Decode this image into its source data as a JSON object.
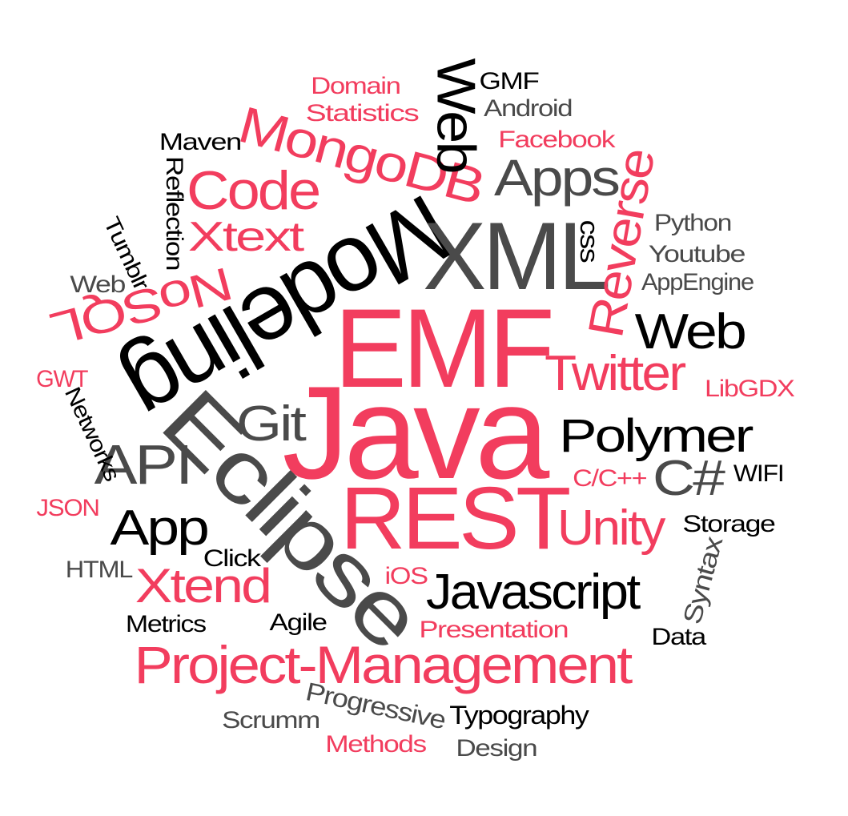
{
  "palette": {
    "pink": "#f23d5e",
    "black": "#000000",
    "gray": "#4a4a4a"
  },
  "words": [
    {
      "id": "java",
      "text": "Java",
      "color": "pink"
    },
    {
      "id": "emf",
      "text": "EMF",
      "color": "pink"
    },
    {
      "id": "rest",
      "text": "REST",
      "color": "pink"
    },
    {
      "id": "modeling",
      "text": "Modeling",
      "color": "black"
    },
    {
      "id": "xml",
      "text": "XML",
      "color": "gray"
    },
    {
      "id": "eclipse",
      "text": "Eclipse",
      "color": "gray"
    },
    {
      "id": "project-management",
      "text": "Project-Management",
      "color": "pink"
    },
    {
      "id": "mongodb",
      "text": "MongoDB",
      "color": "pink"
    },
    {
      "id": "code",
      "text": "Code",
      "color": "pink"
    },
    {
      "id": "xtext",
      "text": "Xtext",
      "color": "pink"
    },
    {
      "id": "nosql",
      "text": "NoSQL",
      "color": "pink"
    },
    {
      "id": "web-large",
      "text": "Web",
      "color": "black"
    },
    {
      "id": "apps",
      "text": "Apps",
      "color": "gray"
    },
    {
      "id": "reverse",
      "text": "Reverse",
      "color": "pink"
    },
    {
      "id": "web-right",
      "text": "Web",
      "color": "black"
    },
    {
      "id": "twitter",
      "text": "Twitter",
      "color": "pink"
    },
    {
      "id": "polymer",
      "text": "Polymer",
      "color": "black"
    },
    {
      "id": "git",
      "text": "Git",
      "color": "gray"
    },
    {
      "id": "api",
      "text": "API",
      "color": "gray"
    },
    {
      "id": "app",
      "text": "App",
      "color": "black"
    },
    {
      "id": "csharp",
      "text": "C#",
      "color": "gray"
    },
    {
      "id": "unity",
      "text": "Unity",
      "color": "pink"
    },
    {
      "id": "javascript",
      "text": "Javascript",
      "color": "black"
    },
    {
      "id": "xtend",
      "text": "Xtend",
      "color": "pink"
    },
    {
      "id": "domain",
      "text": "Domain",
      "color": "pink"
    },
    {
      "id": "statistics",
      "text": "Statistics",
      "color": "pink"
    },
    {
      "id": "gmf",
      "text": "GMF",
      "color": "black"
    },
    {
      "id": "android",
      "text": "Android",
      "color": "gray"
    },
    {
      "id": "facebook",
      "text": "Facebook",
      "color": "pink"
    },
    {
      "id": "maven",
      "text": "Maven",
      "color": "black"
    },
    {
      "id": "reflection",
      "text": "Reflection",
      "color": "black"
    },
    {
      "id": "tumblr",
      "text": "Tumblr",
      "color": "black"
    },
    {
      "id": "web-small",
      "text": "Web",
      "color": "gray"
    },
    {
      "id": "css",
      "text": "css",
      "color": "black"
    },
    {
      "id": "python",
      "text": "Python",
      "color": "gray"
    },
    {
      "id": "youtube",
      "text": "Youtube",
      "color": "gray"
    },
    {
      "id": "appengine",
      "text": "AppEngine",
      "color": "gray"
    },
    {
      "id": "gwt",
      "text": "GWT",
      "color": "pink"
    },
    {
      "id": "networks",
      "text": "Networks",
      "color": "black"
    },
    {
      "id": "libgdx",
      "text": "LibGDX",
      "color": "pink"
    },
    {
      "id": "cpp",
      "text": "C/C++",
      "color": "pink"
    },
    {
      "id": "wifi",
      "text": "WIFI",
      "color": "black"
    },
    {
      "id": "json",
      "text": "JSON",
      "color": "pink"
    },
    {
      "id": "storage",
      "text": "Storage",
      "color": "black"
    },
    {
      "id": "html",
      "text": "HTML",
      "color": "gray"
    },
    {
      "id": "click",
      "text": "Click",
      "color": "black"
    },
    {
      "id": "syntax",
      "text": "Syntax",
      "color": "gray"
    },
    {
      "id": "ios",
      "text": "iOS",
      "color": "pink"
    },
    {
      "id": "metrics",
      "text": "Metrics",
      "color": "black"
    },
    {
      "id": "agile",
      "text": "Agile",
      "color": "black"
    },
    {
      "id": "presentation",
      "text": "Presentation",
      "color": "pink"
    },
    {
      "id": "data",
      "text": "Data",
      "color": "black"
    },
    {
      "id": "progressive",
      "text": "Progressive",
      "color": "gray"
    },
    {
      "id": "scrumm",
      "text": "Scrumm",
      "color": "gray"
    },
    {
      "id": "typography",
      "text": "Typography",
      "color": "black"
    },
    {
      "id": "methods",
      "text": "Methods",
      "color": "pink"
    },
    {
      "id": "design",
      "text": "Design",
      "color": "gray"
    }
  ]
}
